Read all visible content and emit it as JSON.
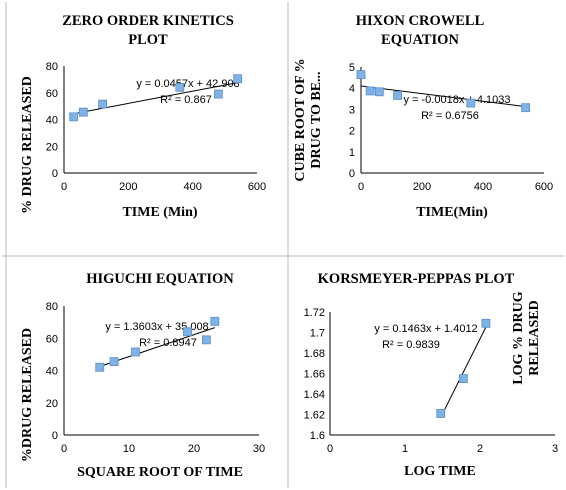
{
  "chart_data": [
    {
      "type": "scatter",
      "title": [
        "ZERO ORDER KINETICS",
        "PLOT"
      ],
      "xlabel": "TIME (Min)",
      "ylabel": [
        "% DRUG RELEASED"
      ],
      "xlim": [
        0,
        600
      ],
      "ylim": [
        0,
        80
      ],
      "xticks": [
        0,
        200,
        400,
        600
      ],
      "yticks": [
        0,
        20,
        40,
        60,
        80
      ],
      "x": [
        30,
        60,
        120,
        360,
        480,
        540
      ],
      "y": [
        42,
        45.5,
        51.5,
        64,
        59,
        70.5
      ],
      "trendline": {
        "slope": 0.0457,
        "intercept": 42.908
      },
      "equation": "y = 0.0457x + 42.908",
      "r_squared": "R² = 0.867"
    },
    {
      "type": "scatter",
      "title": [
        "HIXON CROWELL",
        "EQUATION"
      ],
      "xlabel": "TIME(Min)",
      "ylabel": [
        "CUBE ROOT OF %",
        "DRUG TO BE..."
      ],
      "xlim": [
        0,
        600
      ],
      "ylim": [
        0,
        5
      ],
      "xticks": [
        0,
        200,
        400,
        600
      ],
      "yticks": [
        0,
        1,
        2,
        3,
        4,
        5
      ],
      "x": [
        0,
        30,
        60,
        120,
        360,
        540
      ],
      "y": [
        4.64,
        3.87,
        3.83,
        3.66,
        3.3,
        3.08
      ],
      "trendline": {
        "slope": -0.0018,
        "intercept": 4.1033
      },
      "equation": "y = -0.0018x + 4.1033",
      "r_squared": "R² = 0.6756"
    },
    {
      "type": "scatter",
      "title": [
        "HIGUCHI EQUATION"
      ],
      "xlabel": "SQUARE ROOT OF TIME",
      "ylabel": [
        "%DRUG RELEASED"
      ],
      "xlim": [
        0,
        30
      ],
      "ylim": [
        0,
        80
      ],
      "xticks": [
        0,
        10,
        20,
        30
      ],
      "yticks": [
        0,
        20,
        40,
        60,
        80
      ],
      "x": [
        5.5,
        7.7,
        11,
        19,
        21.9,
        23.2
      ],
      "y": [
        42,
        45.5,
        51.5,
        64,
        59,
        70.5
      ],
      "trendline": {
        "slope": 1.3603,
        "intercept": 35.008
      },
      "equation": "y = 1.3603x + 35.008",
      "r_squared": "R² = 0.8947"
    },
    {
      "type": "scatter",
      "title": [
        "KORSMEYER-PEPPAS PLOT"
      ],
      "xlabel": "LOG TIME",
      "ylabel": [
        "LOG % DRUG",
        "RELEASED"
      ],
      "xlim": [
        0,
        3
      ],
      "ylim": [
        1.6,
        1.72
      ],
      "xticks": [
        0,
        1,
        2,
        3
      ],
      "yticks": [
        1.6,
        1.62,
        1.64,
        1.66,
        1.68,
        1.7,
        1.72
      ],
      "x": [
        1.477,
        1.778,
        2.079
      ],
      "y": [
        1.621,
        1.655,
        1.709
      ],
      "trendline": {
        "slope": 0.1463,
        "intercept": 1.4012
      },
      "equation": "y = 0.1463x + 1.4012",
      "r_squared": "R² = 0.9839"
    }
  ]
}
